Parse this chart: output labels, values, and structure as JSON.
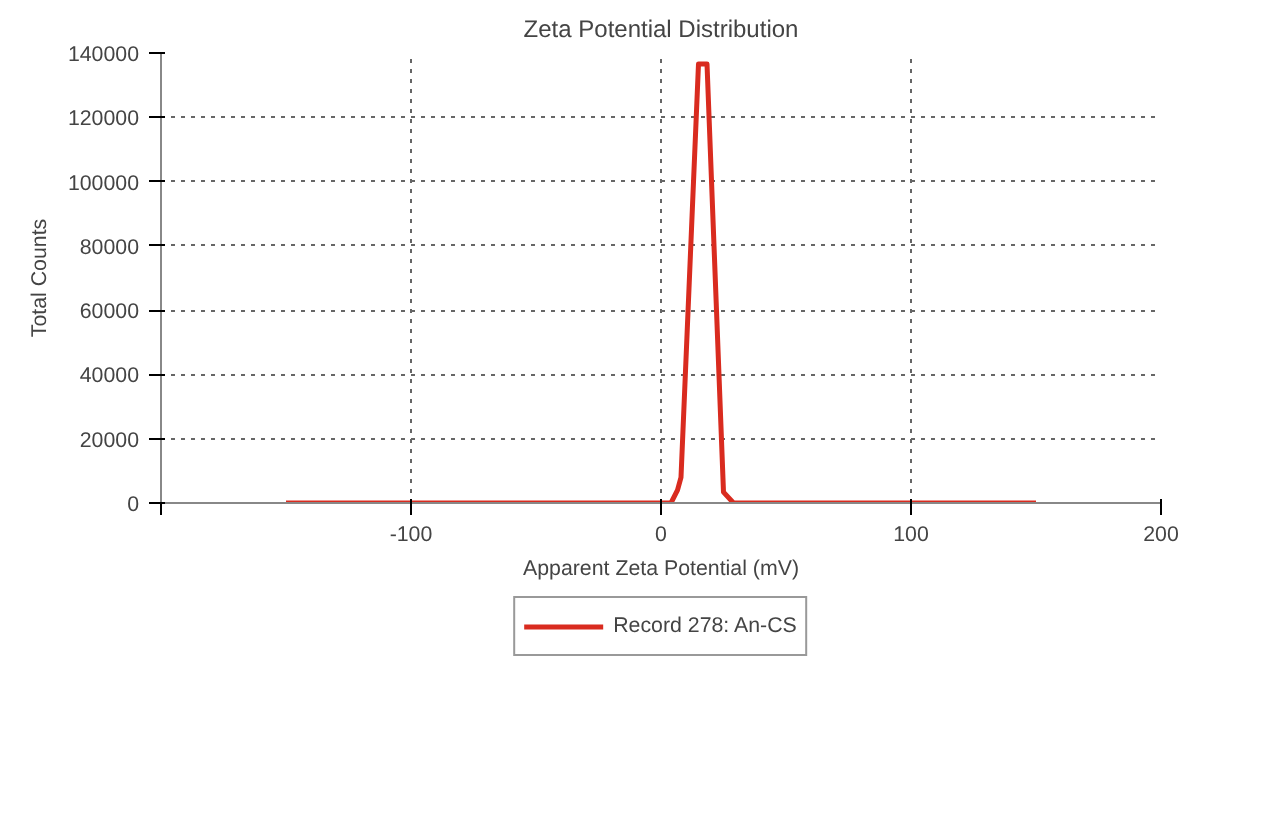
{
  "chart_data": {
    "type": "line",
    "title": "Zeta Potential Distribution",
    "xlabel": "Apparent Zeta Potential (mV)",
    "ylabel": "Total Counts",
    "series": [
      {
        "name": "Record 278: An-CS",
        "color": "#d92b1f",
        "x": [
          -150,
          0,
          4,
          6.6,
          8,
          15,
          18.4,
          25,
          29,
          150
        ],
        "values": [
          0,
          0,
          0,
          4000,
          8000,
          136600,
          136600,
          3400,
          0,
          0
        ]
      }
    ],
    "xlim": [
      -200,
      200
    ],
    "xticks": [
      {
        "value": -200,
        "label": null
      },
      -100,
      0,
      100,
      200
    ],
    "ylim": [
      0,
      140000
    ],
    "yticks": [
      0,
      20000,
      40000,
      60000,
      80000,
      100000,
      120000,
      140000
    ],
    "grid": true,
    "legend": "bottom",
    "line_style": "solid",
    "marker": "none"
  }
}
